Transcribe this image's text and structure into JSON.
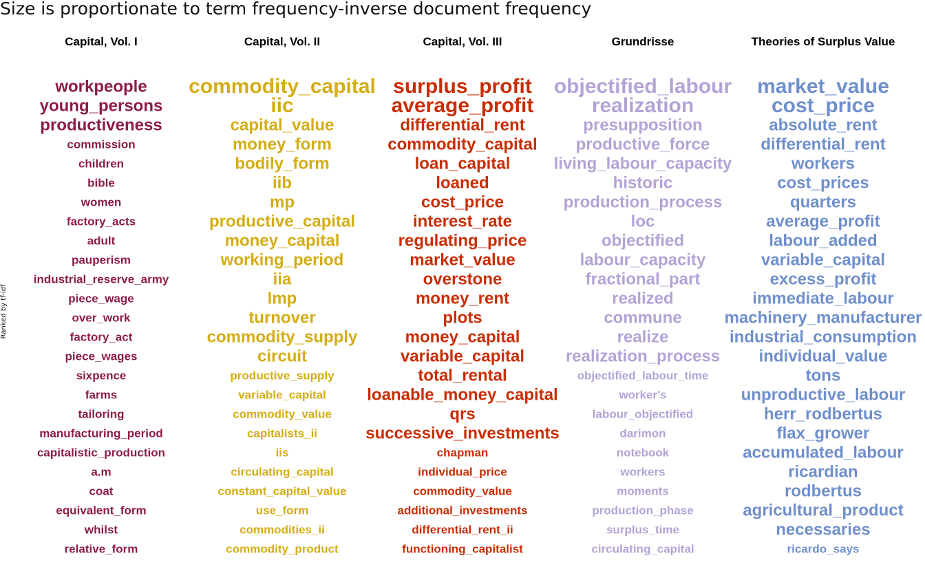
{
  "chart_data": {
    "type": "table",
    "title": "Size is proportionate to term frequency-inverse document frequency",
    "ylabel": "Ranked by tf-idf",
    "columns": [
      {
        "name": "Capital, Vol. I",
        "color": "#8b1c4a",
        "terms": [
          "workpeople",
          "young_persons",
          "productiveness",
          "commission",
          "children",
          "bible",
          "women",
          "factory_acts",
          "adult",
          "pauperism",
          "industrial_reserve_army",
          "piece_wage",
          "over_work",
          "factory_act",
          "piece_wages",
          "sixpence",
          "farms",
          "tailoring",
          "manufacturing_period",
          "capitalistic_production",
          "a.m",
          "coat",
          "equivalent_form",
          "whilst",
          "relative_form"
        ]
      },
      {
        "name": "Capital, Vol. II",
        "color": "#d4ad14",
        "terms": [
          "commodity_capital",
          "iic",
          "capital_value",
          "money_form",
          "bodily_form",
          "iib",
          "mp",
          "productive_capital",
          "money_capital",
          "working_period",
          "iia",
          "lmp",
          "turnover",
          "commodity_supply",
          "circuit",
          "productive_supply",
          "variable_capital",
          "commodity_value",
          "capitalists_ii",
          "iis",
          "circulating_capital",
          "constant_capital_value",
          "use_form",
          "commodities_ii",
          "commodity_product"
        ]
      },
      {
        "name": "Capital, Vol. III",
        "color": "#c92d04",
        "terms": [
          "surplus_profit",
          "average_profit",
          "differential_rent",
          "commodity_capital",
          "loan_capital",
          "loaned",
          "cost_price",
          "interest_rate",
          "regulating_price",
          "market_value",
          "overstone",
          "money_rent",
          "plots",
          "money_capital",
          "variable_capital",
          "total_rental",
          "loanable_money_capital",
          "qrs",
          "successive_investments",
          "chapman",
          "individual_price",
          "commodity_value",
          "additional_investments",
          "differential_rent_ii",
          "functioning_capitalist"
        ]
      },
      {
        "name": "Grundrisse",
        "color": "#b4a3d6",
        "terms": [
          "objectified_labour",
          "realization",
          "presupposition",
          "productive_force",
          "living_labour_capacity",
          "historic",
          "production_process",
          "loc",
          "objectified",
          "labour_capacity",
          "fractional_part",
          "realized",
          "commune",
          "realize",
          "realization_process",
          "objectified_labour_time",
          "worker's",
          "labour_objectified",
          "darimon",
          "notebook",
          "workers",
          "moments",
          "production_phase",
          "surplus_time",
          "circulating_capital"
        ]
      },
      {
        "name": "Theories of Surplus Value",
        "color": "#6f8fcc",
        "terms": [
          "market_value",
          "cost_price",
          "absolute_rent",
          "differential_rent",
          "workers",
          "cost_prices",
          "quarters",
          "average_profit",
          "labour_added",
          "variable_capital",
          "excess_profit",
          "immediate_labour",
          "machinery_manufacturer",
          "industrial_consumption",
          "individual_value",
          "tons",
          "unproductive_labour",
          "herr_rodbertus",
          "flax_grower",
          "accumulated_labour",
          "ricardian",
          "rodbertus",
          "agricultural_product",
          "necessaries",
          "ricardo_says"
        ]
      }
    ]
  }
}
